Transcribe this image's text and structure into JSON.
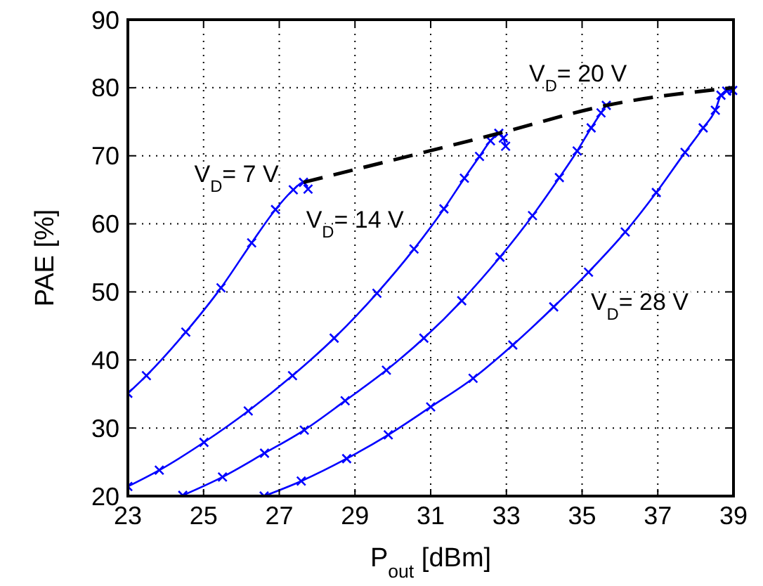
{
  "chart_data": {
    "type": "line",
    "xlabel": "P$_{out}$ [dBm]",
    "ylabel": "PAE [%]",
    "xlim": [
      23,
      39
    ],
    "ylim": [
      20,
      90
    ],
    "xticks": [
      23,
      25,
      27,
      29,
      31,
      33,
      35,
      37,
      39
    ],
    "yticks": [
      20,
      30,
      40,
      50,
      60,
      70,
      80,
      90
    ],
    "grid": true,
    "marker": "cross",
    "line_style": "solid",
    "series": [
      {
        "name": "V$_{D}$= 7 V",
        "color": "#0000ff",
        "x": [
          23,
          23.49,
          24.53,
          25.46,
          26.27,
          26.9,
          27.37,
          27.64,
          27.76
        ],
        "values": [
          35.1,
          37.7,
          44.1,
          50.6,
          57.2,
          62.1,
          65.0,
          66.1,
          65.1
        ]
      },
      {
        "name": "V$_{D}$= 14 V",
        "color": "#0000ff",
        "x": [
          23,
          23.83,
          25.01,
          26.18,
          27.35,
          28.45,
          29.58,
          30.56,
          31.35,
          31.89,
          32.29,
          32.58,
          32.8,
          32.92,
          32.98
        ],
        "values": [
          21.4,
          23.8,
          27.9,
          32.5,
          37.7,
          43.2,
          49.8,
          56.3,
          62.2,
          66.7,
          69.9,
          72.2,
          73.3,
          72.6,
          71.4
        ]
      },
      {
        "name": "V$_{D}$= 20 V",
        "color": "#0000ff",
        "x": [
          24.45,
          25.5,
          26.61,
          27.66,
          28.74,
          29.83,
          30.82,
          31.82,
          32.83,
          33.69,
          34.4,
          34.87,
          35.24,
          35.5,
          35.64
        ],
        "values": [
          20.1,
          22.8,
          26.3,
          29.7,
          34.0,
          38.5,
          43.2,
          48.7,
          55.1,
          61.2,
          66.8,
          70.7,
          74.1,
          76.3,
          77.4
        ]
      },
      {
        "name": "V$_{D}$= 28 V",
        "color": "#0000ff",
        "x": [
          26.6,
          27.58,
          28.78,
          29.88,
          31.0,
          32.12,
          33.17,
          34.25,
          35.17,
          36.14,
          36.96,
          37.72,
          38.2,
          38.52,
          38.67,
          38.82,
          38.98
        ],
        "values": [
          20,
          22.2,
          25.5,
          29.0,
          33.1,
          37.3,
          42.2,
          47.8,
          52.9,
          58.8,
          64.6,
          70.5,
          74.1,
          76.7,
          78.9,
          79.5,
          79.6
        ]
      },
      {
        "color": "#000000",
        "marker": "none",
        "line_style": "dashed",
        "x": [
          27.64,
          32.8,
          35.64,
          39
        ],
        "values": [
          66.1,
          73.3,
          77.4,
          80
        ]
      }
    ]
  }
}
